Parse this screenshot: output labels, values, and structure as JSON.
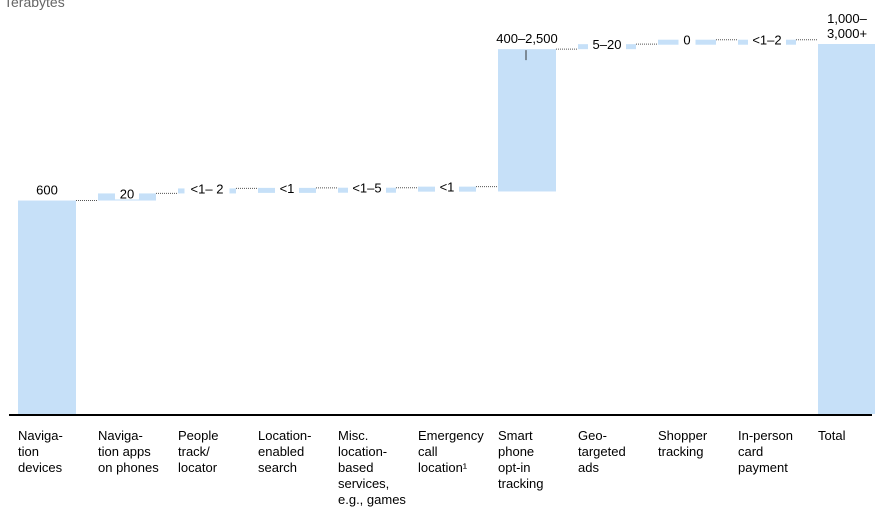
{
  "chart_data": {
    "type": "waterfall",
    "unit_label": "Terabytes",
    "categories": [
      "Naviga- tion devices",
      "Naviga- tion apps on phones",
      "People track/ locator",
      "Location- enabled search",
      "Misc. location- based services, e.g., games",
      "Emergency call location¹",
      "Smart phone opt-in tracking",
      "Geo- targeted ads",
      "Shopper tracking",
      "In-person card payment",
      "Total"
    ],
    "category_lines": [
      [
        "Naviga-",
        "tion",
        "devices"
      ],
      [
        "Naviga-",
        "tion apps",
        "on phones"
      ],
      [
        "People",
        "track/",
        "locator"
      ],
      [
        "Location-",
        "enabled",
        "search"
      ],
      [
        "Misc.",
        "location-",
        "based",
        "services,",
        "e.g., games"
      ],
      [
        "Emergency",
        "call",
        "location¹"
      ],
      [
        "Smart",
        "phone",
        "opt-in",
        "tracking"
      ],
      [
        "Geo-",
        "targeted",
        "ads"
      ],
      [
        "Shopper",
        "tracking"
      ],
      [
        "In-person",
        "card",
        "payment"
      ],
      [
        "Total"
      ]
    ],
    "value_labels": [
      "600",
      "20",
      "<1– 2",
      "<1",
      "<1–5",
      "<1",
      "400–2,500",
      "5–20",
      "0",
      "<1–2",
      "1,000–\n3,000+"
    ],
    "values": [
      600,
      20,
      1.5,
      0.5,
      3,
      0.5,
      400,
      12.5,
      0,
      1.5,
      1040
    ],
    "kinds": [
      "total",
      "increment",
      "increment",
      "increment",
      "increment",
      "increment",
      "increment",
      "increment",
      "increment",
      "increment",
      "total"
    ],
    "bar_color": "#c6e0f8",
    "connector_color": "#555555",
    "axis_color": "#000000"
  }
}
